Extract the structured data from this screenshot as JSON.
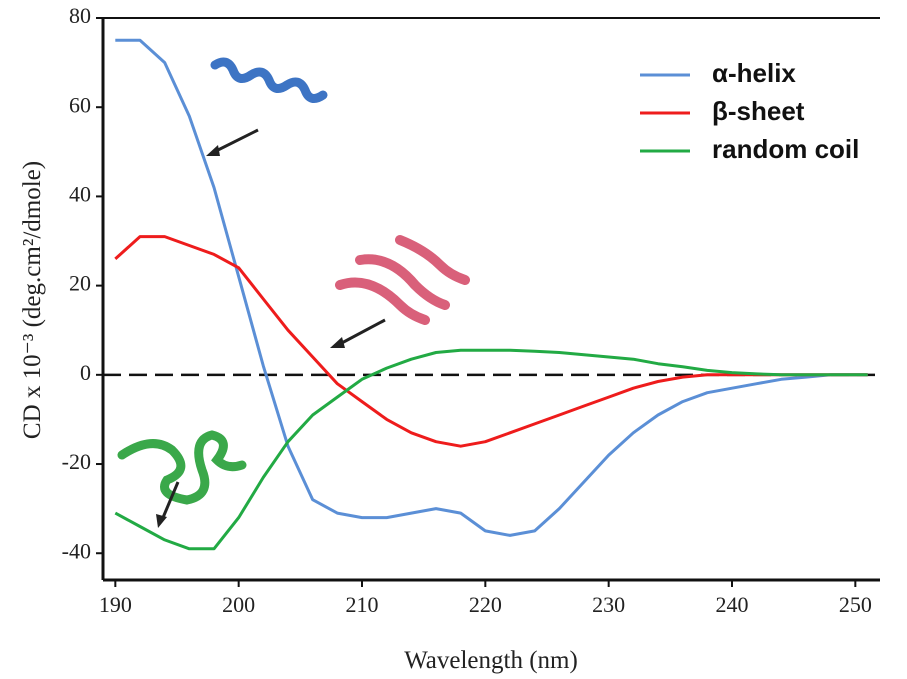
{
  "chart_data": {
    "type": "line",
    "x_label": "Wavelength (nm)",
    "y_label": "CD x 10⁻³ (deg.cm²/dmole)",
    "x": [
      190,
      192,
      194,
      196,
      198,
      200,
      202,
      204,
      206,
      208,
      210,
      212,
      214,
      216,
      218,
      220,
      222,
      224,
      226,
      228,
      230,
      232,
      234,
      236,
      238,
      240,
      242,
      244,
      246,
      248,
      250,
      251
    ],
    "series": [
      {
        "name": "α-helix",
        "color": "#5b8fd6",
        "values": [
          75,
          75,
          70,
          58,
          42,
          22,
          2,
          -16,
          -28,
          -31,
          -32,
          -32,
          -31,
          -30,
          -31,
          -35,
          -36,
          -35,
          -30,
          -24,
          -18,
          -13,
          -9,
          -6,
          -4,
          -3,
          -2,
          -1,
          -0.5,
          0,
          0,
          0
        ]
      },
      {
        "name": "β-sheet",
        "color": "#ee1c1c",
        "values": [
          26,
          31,
          31,
          29,
          27,
          24,
          17,
          10,
          4,
          -2,
          -6,
          -10,
          -13,
          -15,
          -16,
          -15,
          -13,
          -11,
          -9,
          -7,
          -5,
          -3,
          -1.5,
          -0.5,
          0,
          0,
          0,
          0,
          0,
          0,
          0,
          0
        ]
      },
      {
        "name": "random coil",
        "color": "#22aa44",
        "values": [
          -31,
          -34,
          -37,
          -39,
          -39,
          -32,
          -23,
          -15,
          -9,
          -5,
          -1,
          1.5,
          3.5,
          5,
          5.5,
          5.5,
          5.5,
          5.3,
          5,
          4.5,
          4,
          3.5,
          2.5,
          1.8,
          1,
          0.5,
          0.2,
          0,
          0,
          0,
          0,
          0
        ]
      }
    ],
    "xlim": [
      189,
      252
    ],
    "ylim": [
      -46,
      80
    ],
    "xticks": [
      190,
      200,
      210,
      220,
      230,
      240,
      250
    ],
    "yticks": [
      -40,
      -20,
      0,
      20,
      40,
      60,
      80
    ],
    "legend": "upper right"
  }
}
